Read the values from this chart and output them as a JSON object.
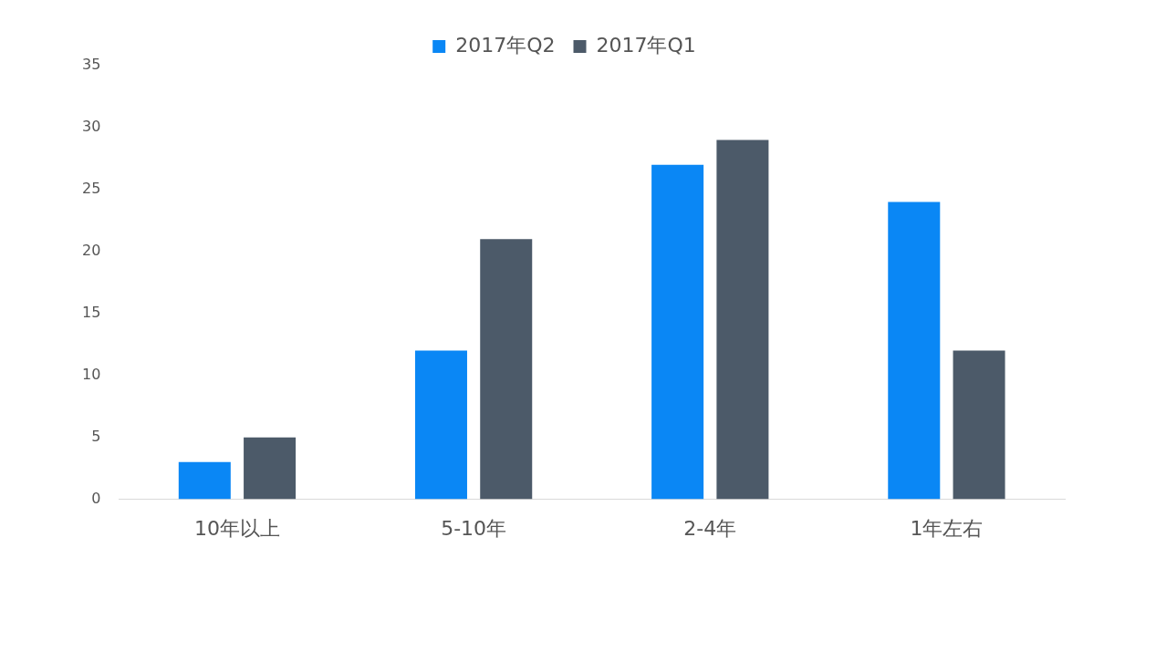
{
  "chart_data": {
    "type": "bar",
    "categories": [
      "10年以上",
      "5-10年",
      "2-4年",
      "1年左右"
    ],
    "series": [
      {
        "name": "2017年Q2",
        "color": "#0a87f5",
        "values": [
          3,
          12,
          27,
          24
        ]
      },
      {
        "name": "2017年Q1",
        "color": "#4c5a69",
        "values": [
          5,
          21,
          29,
          12
        ]
      }
    ],
    "ylim": [
      0,
      35
    ],
    "yticks": [
      0,
      5,
      10,
      15,
      20,
      25,
      30,
      35
    ],
    "grid": false,
    "legend": "top"
  }
}
